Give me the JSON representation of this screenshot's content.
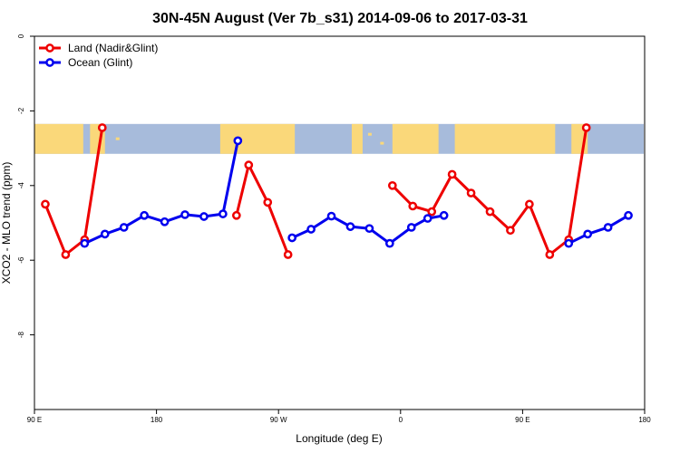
{
  "chart_data": {
    "type": "line",
    "title": "30N-45N August (Ver 7b_s31)   2014-09-06 to 2017-03-31",
    "xlabel": "Longitude (deg E)",
    "ylabel": "XCO2 - MLO trend (ppm)",
    "xlim": [
      90,
      540
    ],
    "ylim": [
      -10,
      0
    ],
    "x_ticks": [
      {
        "value": 90,
        "label": "90 E"
      },
      {
        "value": 180,
        "label": "180"
      },
      {
        "value": 270,
        "label": "90 W"
      },
      {
        "value": 360,
        "label": "0"
      },
      {
        "value": 450,
        "label": "90 E"
      },
      {
        "value": 540,
        "label": "180"
      }
    ],
    "y_ticks": [
      {
        "value": 0,
        "label": "0"
      },
      {
        "value": -2,
        "label": "-2"
      },
      {
        "value": -4,
        "label": "-4"
      },
      {
        "value": -6,
        "label": "-6"
      },
      {
        "value": -8,
        "label": "-8"
      }
    ],
    "map_band": {
      "y_top": -2.35,
      "y_bottom": -3.15,
      "land_color": "#fad87a",
      "ocean_color": "#a7bbdb"
    },
    "legend_position": "top-left",
    "series": [
      {
        "name": "Land (Nadir&Glint)",
        "color": "#ee0000",
        "segments": [
          [
            [
              98,
              -4.5
            ],
            [
              113,
              -5.85
            ],
            [
              127,
              -5.45
            ],
            [
              140,
              -2.45
            ]
          ],
          [
            [
              239,
              -4.8
            ],
            [
              248,
              -3.45
            ],
            [
              262,
              -4.45
            ],
            [
              277,
              -5.85
            ]
          ],
          [
            [
              354,
              -4.0
            ],
            [
              369,
              -4.55
            ],
            [
              383,
              -4.7
            ],
            [
              398,
              -3.7
            ],
            [
              412,
              -4.2
            ],
            [
              426,
              -4.7
            ],
            [
              441,
              -5.2
            ],
            [
              455,
              -4.5
            ],
            [
              470,
              -5.85
            ],
            [
              484,
              -5.45
            ],
            [
              497,
              -2.45
            ]
          ]
        ]
      },
      {
        "name": "Ocean (Glint)",
        "color": "#0000ee",
        "segments": [
          [
            [
              127,
              -5.55
            ],
            [
              142,
              -5.3
            ],
            [
              156,
              -5.12
            ],
            [
              171,
              -4.8
            ],
            [
              186,
              -4.97
            ],
            [
              201,
              -4.78
            ],
            [
              215,
              -4.83
            ],
            [
              229,
              -4.76
            ],
            [
              240,
              -2.8
            ]
          ],
          [
            [
              280,
              -5.4
            ],
            [
              294,
              -5.17
            ],
            [
              309,
              -4.82
            ],
            [
              323,
              -5.1
            ],
            [
              337,
              -5.15
            ],
            [
              352,
              -5.55
            ],
            [
              368,
              -5.12
            ],
            [
              380,
              -4.88
            ],
            [
              392,
              -4.8
            ]
          ],
          [
            [
              484,
              -5.55
            ],
            [
              498,
              -5.3
            ],
            [
              513,
              -5.12
            ],
            [
              528,
              -4.8
            ]
          ]
        ]
      }
    ]
  }
}
